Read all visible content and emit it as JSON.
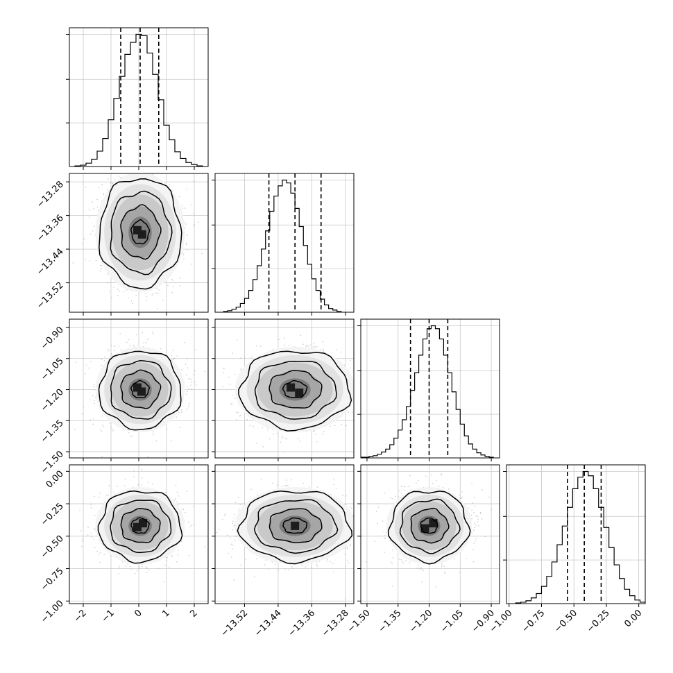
{
  "chart_data": {
    "type": "corner",
    "grid": true,
    "parameter_count": 4,
    "parameter_labels": [
      "",
      "",
      "",
      ""
    ],
    "axis_ranges": [
      [
        -2.5,
        2.5
      ],
      [
        -13.59,
        -13.26
      ],
      [
        -1.53,
        -0.86
      ],
      [
        -1.02,
        0.05
      ]
    ],
    "ticks": [
      {
        "values": [
          -2,
          -1,
          0,
          1,
          2
        ],
        "labels": [
          "−2",
          "−1",
          "0",
          "1",
          "2"
        ]
      },
      {
        "values": [
          -13.52,
          -13.44,
          -13.36,
          -13.28
        ],
        "labels": [
          "−13.52",
          "−13.44",
          "−13.36",
          "−13.28"
        ]
      },
      {
        "values": [
          -1.5,
          -1.35,
          -1.2,
          -1.05,
          -0.9
        ],
        "labels": [
          "−1.50",
          "−1.35",
          "−1.20",
          "−1.05",
          "−0.90"
        ]
      },
      {
        "values": [
          -1.0,
          -0.75,
          -0.5,
          -0.25,
          0.0
        ],
        "labels": [
          "−1.00",
          "−0.75",
          "−0.50",
          "−0.25",
          "0.00"
        ]
      }
    ],
    "marginals": [
      {
        "quantiles": [
          -0.65,
          0.05,
          0.72
        ],
        "bin_edges": [
          -2.3,
          -2.1,
          -1.9,
          -1.7,
          -1.5,
          -1.3,
          -1.1,
          -0.9,
          -0.7,
          -0.5,
          -0.3,
          -0.1,
          0.1,
          0.3,
          0.5,
          0.7,
          0.9,
          1.1,
          1.3,
          1.5,
          1.7,
          1.9,
          2.1,
          2.3
        ],
        "counts": [
          1,
          2,
          5,
          11,
          23,
          42,
          70,
          102,
          135,
          168,
          186,
          198,
          196,
          170,
          138,
          100,
          62,
          40,
          22,
          12,
          6,
          3,
          1
        ]
      },
      {
        "quantiles": [
          -13.462,
          -13.4,
          -13.338
        ],
        "bin_edges": [
          -13.57,
          -13.56,
          -13.55,
          -13.54,
          -13.53,
          -13.52,
          -13.51,
          -13.5,
          -13.49,
          -13.48,
          -13.47,
          -13.46,
          -13.45,
          -13.44,
          -13.43,
          -13.42,
          -13.41,
          -13.4,
          -13.39,
          -13.38,
          -13.37,
          -13.36,
          -13.35,
          -13.34,
          -13.33,
          -13.32,
          -13.31,
          -13.3,
          -13.29
        ],
        "counts": [
          1,
          2,
          4,
          7,
          12,
          19,
          30,
          45,
          64,
          87,
          112,
          139,
          160,
          174,
          182,
          178,
          164,
          143,
          118,
          92,
          66,
          46,
          30,
          18,
          10,
          5,
          3,
          1
        ]
      },
      {
        "quantiles": [
          -1.29,
          -1.2,
          -1.11
        ],
        "bin_edges": [
          -1.53,
          -1.51,
          -1.49,
          -1.47,
          -1.45,
          -1.43,
          -1.41,
          -1.39,
          -1.37,
          -1.35,
          -1.33,
          -1.31,
          -1.29,
          -1.27,
          -1.25,
          -1.23,
          -1.21,
          -1.19,
          -1.17,
          -1.15,
          -1.13,
          -1.11,
          -1.09,
          -1.07,
          -1.05,
          -1.03,
          -1.01,
          -0.99,
          -0.97,
          -0.95,
          -0.93,
          -0.91,
          -0.89
        ],
        "counts": [
          1,
          1,
          2,
          3,
          5,
          8,
          12,
          18,
          27,
          38,
          52,
          70,
          92,
          116,
          140,
          162,
          176,
          180,
          176,
          162,
          140,
          116,
          90,
          66,
          46,
          30,
          19,
          12,
          7,
          4,
          2,
          1
        ]
      },
      {
        "quantiles": [
          -0.55,
          -0.42,
          -0.29
        ],
        "bin_edges": [
          -0.95,
          -0.91,
          -0.87,
          -0.83,
          -0.79,
          -0.75,
          -0.71,
          -0.67,
          -0.63,
          -0.59,
          -0.55,
          -0.51,
          -0.47,
          -0.43,
          -0.39,
          -0.35,
          -0.31,
          -0.27,
          -0.23,
          -0.19,
          -0.15,
          -0.11,
          -0.07,
          -0.03,
          0.01,
          0.05
        ],
        "counts": [
          1,
          2,
          4,
          8,
          14,
          24,
          38,
          58,
          82,
          108,
          134,
          160,
          176,
          184,
          178,
          160,
          134,
          106,
          78,
          54,
          35,
          20,
          11,
          5,
          2
        ]
      }
    ],
    "pairs": [
      {
        "row": 1,
        "col": 0,
        "center": [
          0.05,
          -13.4
        ],
        "sigma": [
          0.7,
          0.062
        ],
        "peaks": [
          [
            -0.05,
            -13.395
          ],
          [
            0.12,
            -13.405
          ]
        ]
      },
      {
        "row": 2,
        "col": 0,
        "center": [
          0.05,
          -1.2
        ],
        "sigma": [
          0.7,
          0.09
        ],
        "peaks": [
          [
            -0.05,
            -1.19
          ],
          [
            0.1,
            -1.21
          ]
        ]
      },
      {
        "row": 2,
        "col": 1,
        "center": [
          -13.4,
          -1.2
        ],
        "sigma": [
          0.062,
          0.09
        ],
        "peaks": [
          [
            -13.41,
            -1.19
          ],
          [
            -13.39,
            -1.215
          ]
        ]
      },
      {
        "row": 3,
        "col": 0,
        "center": [
          0.05,
          -0.42
        ],
        "sigma": [
          0.7,
          0.13
        ],
        "peaks": [
          [
            -0.05,
            -0.43
          ],
          [
            0.15,
            -0.4
          ]
        ]
      },
      {
        "row": 3,
        "col": 1,
        "center": [
          -13.4,
          -0.42
        ],
        "sigma": [
          0.062,
          0.13
        ],
        "peaks": [
          [
            -13.4,
            -0.42
          ]
        ]
      },
      {
        "row": 3,
        "col": 2,
        "center": [
          -1.2,
          -0.42
        ],
        "sigma": [
          0.09,
          0.13
        ],
        "peaks": [
          [
            -1.18,
            -0.4
          ],
          [
            -1.22,
            -0.44
          ]
        ]
      }
    ]
  }
}
